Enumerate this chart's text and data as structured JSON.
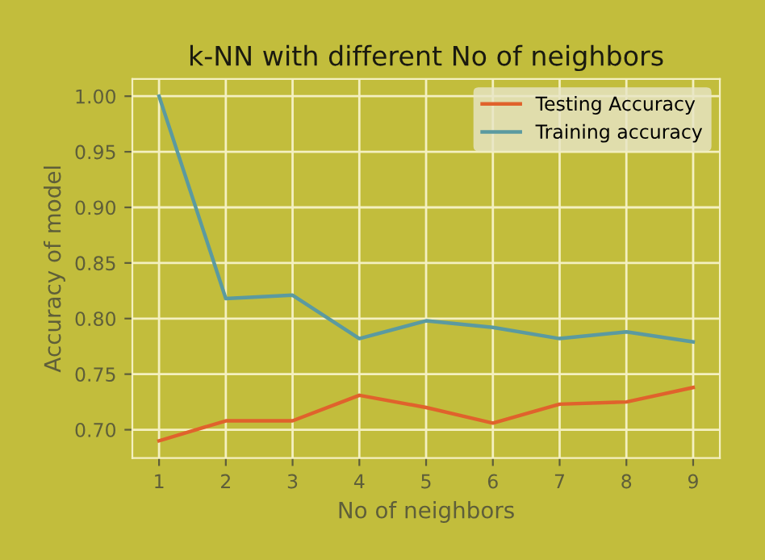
{
  "chart_data": {
    "type": "line",
    "title": "k-NN with different No of neighbors",
    "xlabel": "No of neighbors",
    "ylabel": "Accuracy of model",
    "x": [
      1,
      2,
      3,
      4,
      5,
      6,
      7,
      8,
      9
    ],
    "series": [
      {
        "name": "Testing Accuracy",
        "color": "#e0622c",
        "values": [
          0.69,
          0.708,
          0.708,
          0.731,
          0.72,
          0.706,
          0.723,
          0.725,
          0.738
        ]
      },
      {
        "name": "Training accuracy",
        "color": "#5b9aa0",
        "values": [
          1.0,
          0.818,
          0.821,
          0.782,
          0.798,
          0.792,
          0.782,
          0.788,
          0.779
        ]
      }
    ],
    "xlim": [
      0.6,
      9.4
    ],
    "xticks": [
      1,
      2,
      3,
      4,
      5,
      6,
      7,
      8,
      9
    ],
    "ylim": [
      0.6745,
      1.0155
    ],
    "yticks": [
      {
        "value": 0.7,
        "label": "0.70"
      },
      {
        "value": 0.75,
        "label": "0.75"
      },
      {
        "value": 0.8,
        "label": "0.80"
      },
      {
        "value": 0.85,
        "label": "0.85"
      },
      {
        "value": 0.9,
        "label": "0.90"
      },
      {
        "value": 0.95,
        "label": "0.95"
      },
      {
        "value": 1.0,
        "label": "1.00"
      }
    ],
    "grid": true,
    "legend": "top right"
  }
}
